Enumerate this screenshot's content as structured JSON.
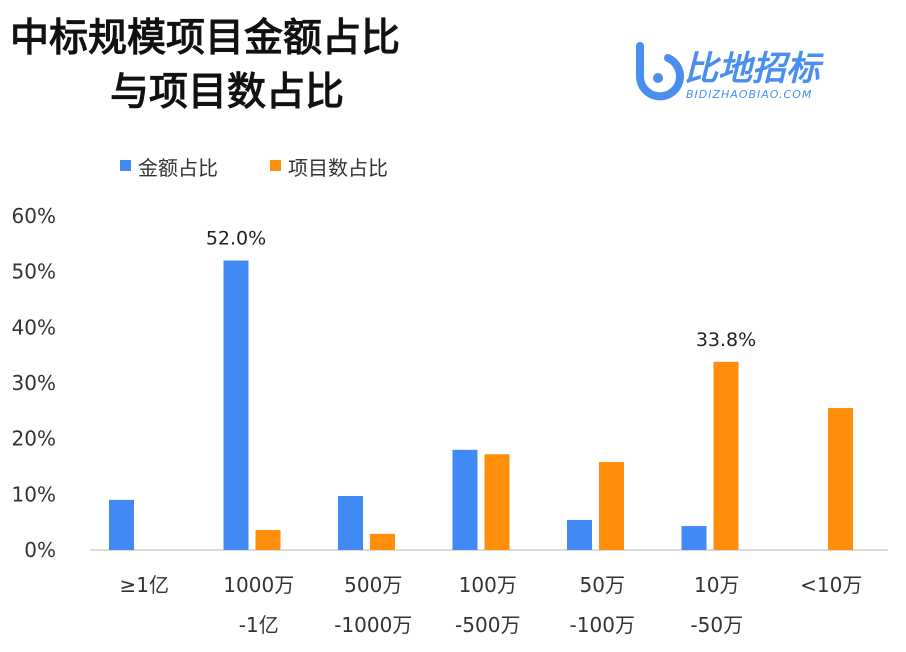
{
  "title_line1": "中标规模项目金额占比",
  "title_line2": "与项目数占比",
  "logo": {
    "text": "比地招标",
    "sub": "BIDIZHAOBIAO.COM"
  },
  "colors": {
    "amount": "#4189F5",
    "count": "#FF8F0B"
  },
  "chart_data": {
    "type": "bar",
    "title": "中标规模项目金额占比 与项目数占比",
    "categories": [
      [
        "≥1亿"
      ],
      [
        "1000万",
        "-1亿"
      ],
      [
        "500万",
        "-1000万"
      ],
      [
        "100万",
        "-500万"
      ],
      [
        "50万",
        "-100万"
      ],
      [
        "10万",
        "-50万"
      ],
      [
        "<10万"
      ]
    ],
    "series": [
      {
        "name": "金额占比",
        "values": [
          9.0,
          52.0,
          9.7,
          18.0,
          5.4,
          4.3,
          0
        ]
      },
      {
        "name": "项目数占比",
        "values": [
          0,
          3.6,
          2.9,
          17.2,
          15.8,
          33.8,
          25.5
        ]
      }
    ],
    "data_labels": [
      {
        "series": 0,
        "index": 1,
        "text": "52.0%"
      },
      {
        "series": 1,
        "index": 5,
        "text": "33.8%"
      }
    ],
    "yticks": [
      "0%",
      "10%",
      "20%",
      "30%",
      "40%",
      "50%",
      "60%"
    ],
    "ylim": [
      0,
      60
    ],
    "grid": false,
    "legend": "top-left"
  }
}
